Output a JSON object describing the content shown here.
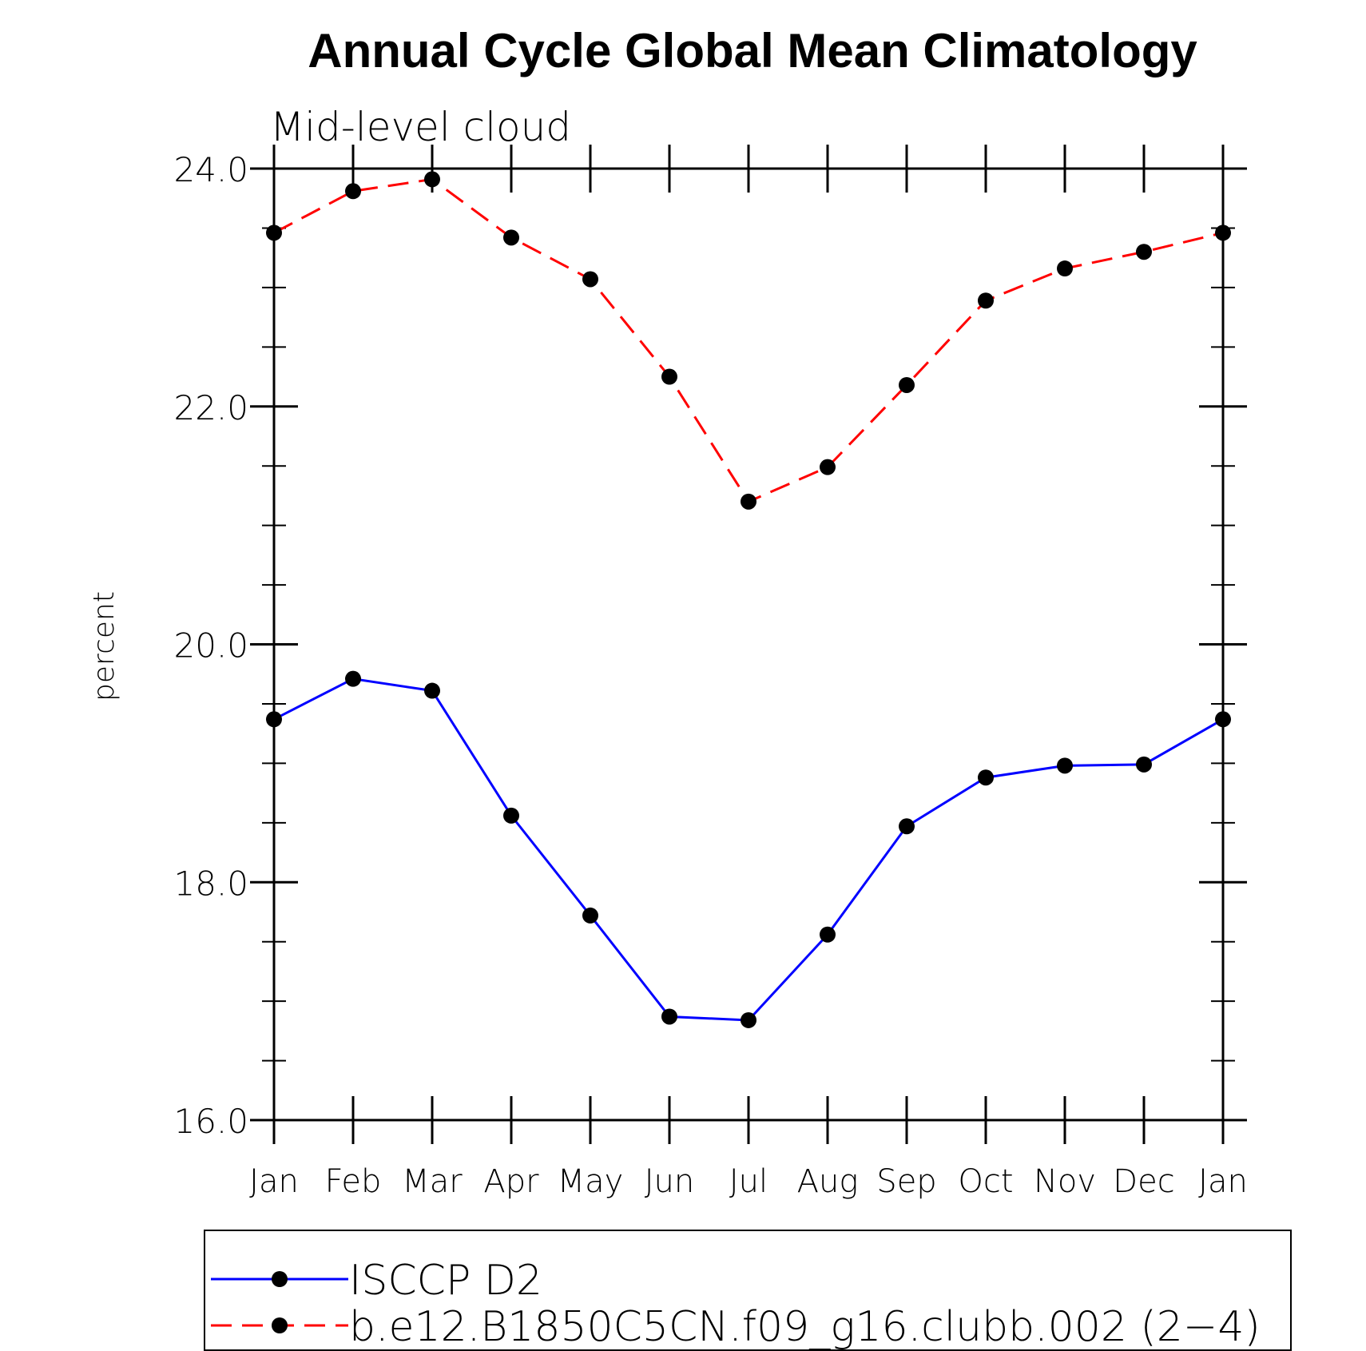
{
  "chart_data": {
    "type": "line",
    "title": "Annual Cycle Global Mean Climatology",
    "subtitle": "Mid-level cloud",
    "xlabel": "",
    "ylabel": "percent",
    "categories": [
      "Jan",
      "Feb",
      "Mar",
      "Apr",
      "May",
      "Jun",
      "Jul",
      "Aug",
      "Sep",
      "Oct",
      "Nov",
      "Dec",
      "Jan"
    ],
    "ylim": [
      16.0,
      24.0
    ],
    "yticks": [
      "16.0",
      "18.0",
      "20.0",
      "22.0",
      "24.0"
    ],
    "series": [
      {
        "name": "ISCCP D2",
        "color": "#0000ff",
        "dash": "solid",
        "values": [
          19.37,
          19.71,
          19.61,
          18.56,
          17.72,
          16.87,
          16.84,
          17.56,
          18.47,
          18.88,
          18.98,
          18.99,
          19.37
        ]
      },
      {
        "name": "b.e12.B1850C5CN.f09_g16.clubb.002 (2−4)",
        "color": "#ff0000",
        "dash": "dashed",
        "values": [
          23.46,
          23.81,
          23.91,
          23.42,
          23.07,
          22.25,
          21.2,
          21.49,
          22.18,
          22.89,
          23.16,
          23.3,
          23.46
        ]
      }
    ],
    "legend_position": "bottom",
    "grid": false
  }
}
